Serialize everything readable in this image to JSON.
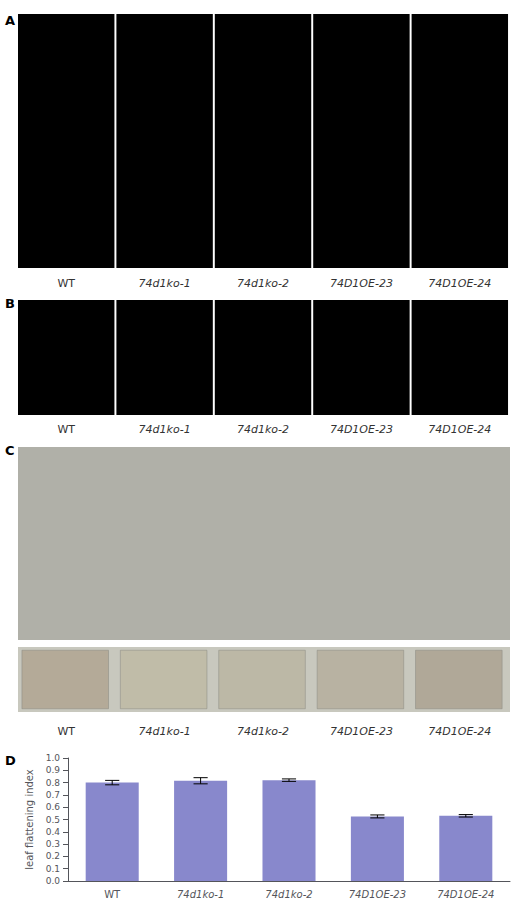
{
  "chart_data": {
    "type": "bar",
    "annotations": [
      "A",
      "B",
      "C",
      "D"
    ],
    "categories": [
      "WT",
      "74d1ko-1",
      "74d1ko-2",
      "74D1OE-23",
      "74D1OE-24"
    ],
    "values": [
      0.8,
      0.815,
      0.82,
      0.525,
      0.53
    ],
    "errors": [
      0.018,
      0.025,
      0.01,
      0.012,
      0.01
    ],
    "color": "#8888cc",
    "ylabel": "leaf flattening index",
    "ylim": [
      0.0,
      1.0
    ],
    "yticks": [
      {
        "value": 0.0,
        "label": "0.0"
      },
      0.1,
      0.2,
      0.3,
      0.4,
      0.5,
      0.6,
      0.7,
      0.8,
      0.9,
      {
        "value": 1.0,
        "label": "1.0"
      }
    ],
    "grid": false
  }
}
